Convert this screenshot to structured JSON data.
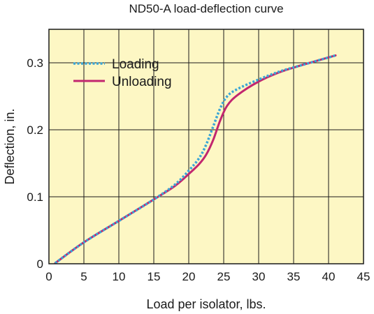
{
  "chart_data": {
    "type": "line",
    "title": "ND50-A load-deflection curve",
    "xlabel": "Load per isolator, lbs.",
    "ylabel": "Deflection, in.",
    "xlim": [
      0,
      45
    ],
    "ylim": [
      0,
      0.35
    ],
    "xticks": [
      "0",
      "5",
      "10",
      "15",
      "20",
      "25",
      "30",
      "35",
      "40",
      "45"
    ],
    "yticks": [
      "0",
      "0.1",
      "0.2",
      "0.3"
    ],
    "grid": true,
    "legend_position": "top-left",
    "plot_background": "#fdf7c4",
    "series": [
      {
        "name": "Loading",
        "style": "dotted",
        "color": "#3aa6d6",
        "x": [
          0.9,
          5,
          10,
          15,
          18,
          20,
          21.5,
          22.5,
          23.5,
          24.5,
          25.5,
          27,
          30,
          33,
          36,
          38,
          41
        ],
        "y": [
          0.001,
          0.032,
          0.064,
          0.096,
          0.118,
          0.139,
          0.158,
          0.178,
          0.205,
          0.232,
          0.25,
          0.261,
          0.275,
          0.287,
          0.296,
          0.302,
          0.311
        ]
      },
      {
        "name": "Unloading",
        "style": "solid",
        "color": "#c2266f",
        "x": [
          0.9,
          5,
          10,
          15,
          18,
          20,
          21.5,
          22.5,
          23.5,
          24.5,
          25.5,
          27,
          30,
          33,
          36,
          38,
          41
        ],
        "y": [
          0.001,
          0.032,
          0.064,
          0.096,
          0.116,
          0.134,
          0.149,
          0.163,
          0.185,
          0.214,
          0.236,
          0.252,
          0.272,
          0.286,
          0.296,
          0.302,
          0.311
        ]
      }
    ]
  }
}
